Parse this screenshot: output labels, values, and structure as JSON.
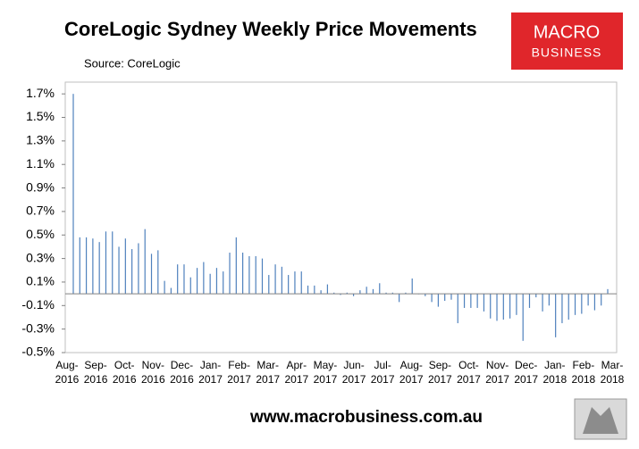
{
  "chart_data": {
    "type": "bar",
    "title": "CoreLogic Sydney Weekly Price Movements",
    "subtitle": "Source: CoreLogic",
    "logo": {
      "line1": "MACRO",
      "line2": "BUSINESS"
    },
    "website": "www.macrobusiness.com.au",
    "color": "#4f81bd",
    "x_labels": [
      "Aug-2016",
      "Sep-2016",
      "Oct-2016",
      "Nov-2016",
      "Dec-2016",
      "Jan-2017",
      "Feb-2017",
      "Mar-2017",
      "Apr-2017",
      "May-2017",
      "Jun-2017",
      "Jul-2017",
      "Aug-2017",
      "Sep-2017",
      "Oct-2017",
      "Nov-2017",
      "Dec-2017",
      "Jan-2018",
      "Feb-2018",
      "Mar-2018"
    ],
    "values": [
      1.7,
      0.48,
      0.48,
      0.47,
      0.44,
      0.53,
      0.53,
      0.4,
      0.47,
      0.38,
      0.43,
      0.55,
      0.34,
      0.37,
      0.11,
      0.05,
      0.25,
      0.25,
      0.14,
      0.22,
      0.27,
      0.17,
      0.22,
      0.19,
      0.35,
      0.48,
      0.35,
      0.32,
      0.32,
      0.3,
      0.16,
      0.25,
      0.23,
      0.16,
      0.19,
      0.19,
      0.07,
      0.07,
      0.03,
      0.08,
      0.01,
      -0.01,
      0.01,
      -0.02,
      0.03,
      0.06,
      0.04,
      0.09,
      0.01,
      0.01,
      -0.07,
      0.01,
      0.13,
      0.0,
      -0.02,
      -0.07,
      -0.11,
      -0.06,
      -0.05,
      -0.25,
      -0.12,
      -0.12,
      -0.12,
      -0.15,
      -0.21,
      -0.23,
      -0.22,
      -0.21,
      -0.18,
      -0.4,
      -0.12,
      -0.03,
      -0.15,
      -0.1,
      -0.37,
      -0.25,
      -0.22,
      -0.18,
      -0.17,
      -0.1,
      -0.14,
      -0.1,
      0.04
    ],
    "ylim": [
      -0.5,
      1.8
    ],
    "yticks": [
      {
        "value": -0.5,
        "label": "-0.5%"
      },
      {
        "value": -0.3,
        "label": "-0.3%"
      },
      {
        "value": -0.1,
        "label": "-0.1%"
      },
      {
        "value": 0.1,
        "label": "0.1%"
      },
      {
        "value": 0.3,
        "label": "0.3%"
      },
      {
        "value": 0.5,
        "label": "0.5%"
      },
      {
        "value": 0.7,
        "label": "0.7%"
      },
      {
        "value": 0.9,
        "label": "0.9%"
      },
      {
        "value": 1.1,
        "label": "1.1%"
      },
      {
        "value": 1.3,
        "label": "1.3%"
      },
      {
        "value": 1.5,
        "label": "1.5%"
      },
      {
        "value": 1.7,
        "label": "1.7%"
      }
    ]
  }
}
